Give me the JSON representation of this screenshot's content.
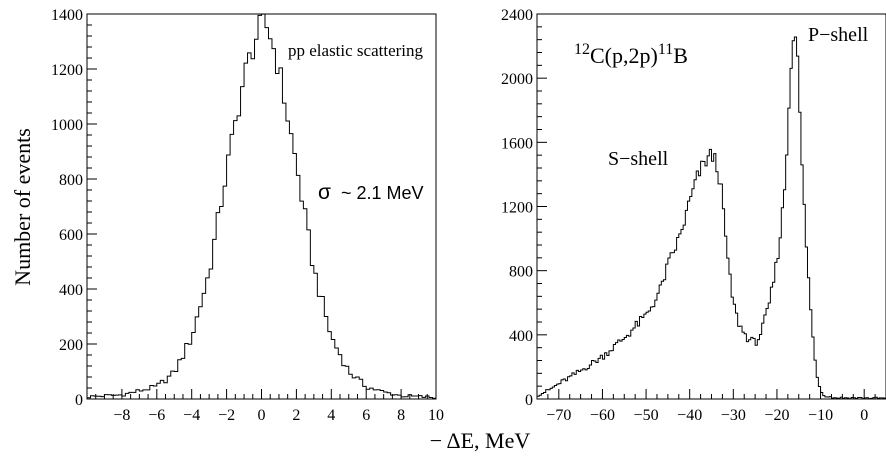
{
  "shared": {
    "ylabel": "Number of events",
    "xlabel": "− ΔE, MeV"
  },
  "chart_data": [
    {
      "type": "histogram",
      "title": "",
      "xlim": [
        -10,
        10
      ],
      "ylim": [
        0,
        1400
      ],
      "xticks": [
        -8,
        -6,
        -4,
        -2,
        0,
        2,
        4,
        6,
        8,
        10
      ],
      "yticks": [
        0,
        200,
        400,
        600,
        800,
        1000,
        1200,
        1400
      ],
      "annotations": {
        "process": "pp elastic scattering",
        "sigma_symbol": "σ",
        "sigma_value": "~ 2.1 MeV"
      },
      "series": [
        {
          "bin_width": 0.2,
          "profile": "gaussian",
          "center": 0,
          "sigma": 2.1,
          "peak": 1340,
          "points": [
            [
              -10,
              8
            ],
            [
              -8,
              15
            ],
            [
              -6,
              45
            ],
            [
              -5,
              95
            ],
            [
              -4,
              225
            ],
            [
              -3,
              460
            ],
            [
              -2,
              830
            ],
            [
              -1,
              1170
            ],
            [
              -0.4,
              1300
            ],
            [
              0,
              1360
            ],
            [
              0.4,
              1350
            ],
            [
              1,
              1200
            ],
            [
              2,
              850
            ],
            [
              3,
              470
            ],
            [
              4,
              225
            ],
            [
              5,
              100
            ],
            [
              6,
              45
            ],
            [
              7,
              25
            ],
            [
              8,
              12
            ],
            [
              10,
              5
            ]
          ]
        }
      ]
    },
    {
      "type": "histogram",
      "title": "",
      "xlim": [
        -75,
        5
      ],
      "ylim": [
        0,
        2400
      ],
      "xticks": [
        -70,
        -60,
        -50,
        -40,
        -30,
        -20,
        -10,
        0
      ],
      "yticks": [
        0,
        400,
        800,
        1200,
        1600,
        2000,
        2400
      ],
      "annotations": {
        "reaction_sup1": "12",
        "reaction_base1": "C(p,2p)",
        "reaction_sup2": "11",
        "reaction_base2": "B",
        "s_shell": "S−shell",
        "p_shell": "P−shell"
      },
      "series": [
        {
          "bin_width": 0.5,
          "points": [
            [
              -75,
              20
            ],
            [
              -72,
              60
            ],
            [
              -70,
              95
            ],
            [
              -65,
              175
            ],
            [
              -60,
              265
            ],
            [
              -55,
              380
            ],
            [
              -50,
              520
            ],
            [
              -47,
              660
            ],
            [
              -45,
              830
            ],
            [
              -42,
              1030
            ],
            [
              -40,
              1230
            ],
            [
              -38,
              1400
            ],
            [
              -36,
              1500
            ],
            [
              -35,
              1520
            ],
            [
              -34,
              1480
            ],
            [
              -33,
              1360
            ],
            [
              -32,
              1090
            ],
            [
              -31,
              790
            ],
            [
              -30,
              600
            ],
            [
              -29,
              490
            ],
            [
              -28,
              430
            ],
            [
              -27,
              390
            ],
            [
              -26,
              365
            ],
            [
              -25,
              350
            ],
            [
              -24,
              390
            ],
            [
              -23,
              470
            ],
            [
              -22,
              560
            ],
            [
              -21,
              700
            ],
            [
              -20,
              860
            ],
            [
              -19,
              1080
            ],
            [
              -18,
              1400
            ],
            [
              -17.2,
              1850
            ],
            [
              -16.5,
              2250
            ],
            [
              -16,
              2330
            ],
            [
              -15.4,
              2200
            ],
            [
              -14.8,
              1800
            ],
            [
              -14,
              1300
            ],
            [
              -13,
              850
            ],
            [
              -12,
              450
            ],
            [
              -11,
              180
            ],
            [
              -10,
              50
            ],
            [
              -9,
              20
            ],
            [
              -7,
              8
            ],
            [
              5,
              5
            ]
          ]
        }
      ]
    }
  ]
}
